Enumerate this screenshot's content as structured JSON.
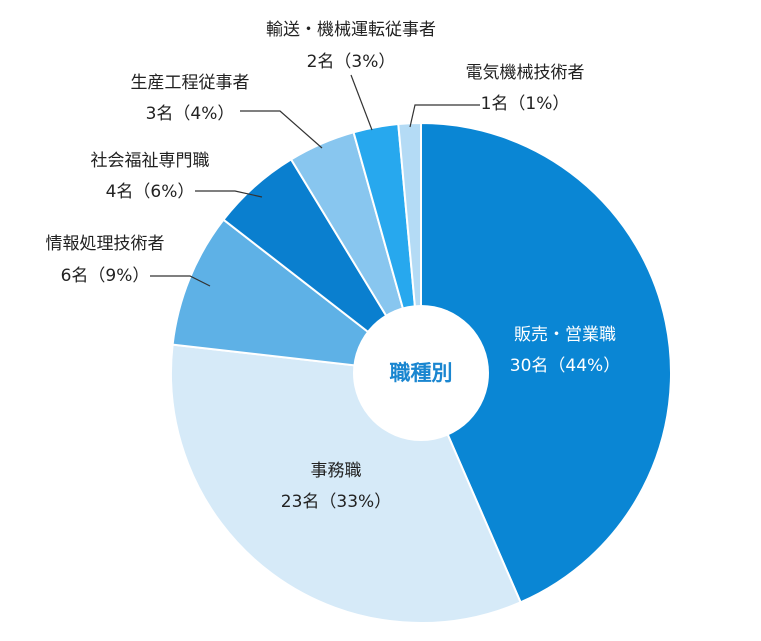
{
  "chart_data": {
    "type": "pie",
    "title": "職種別",
    "unit": "名",
    "slices": [
      {
        "label": "販売・営業職",
        "count": 30,
        "percent": 44,
        "value_text": "30名（44%）",
        "color": "#0a86d4"
      },
      {
        "label": "事務職",
        "count": 23,
        "percent": 33,
        "value_text": "23名（33%）",
        "color": "#d6eaf8"
      },
      {
        "label": "情報処理技術者",
        "count": 6,
        "percent": 9,
        "value_text": "6名（9%）",
        "color": "#5eb1e6"
      },
      {
        "label": "社会福祉専門職",
        "count": 4,
        "percent": 6,
        "value_text": "4名（6%）",
        "color": "#0a7fcf"
      },
      {
        "label": "生産工程従事者",
        "count": 3,
        "percent": 4,
        "value_text": "3名（4%）",
        "color": "#88c6ef"
      },
      {
        "label": "輸送・機械運転従事者",
        "count": 2,
        "percent": 3,
        "value_text": "2名（3%）",
        "color": "#27a8ee"
      },
      {
        "label": "電気機械技術者",
        "count": 1,
        "percent": 1,
        "value_text": "1名（1%）",
        "color": "#b4dbf5"
      }
    ]
  }
}
